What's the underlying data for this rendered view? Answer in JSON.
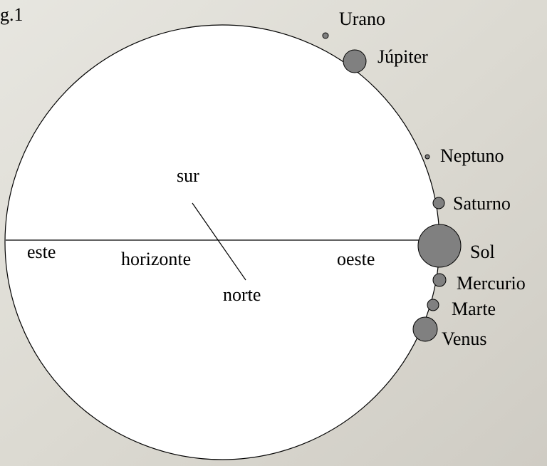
{
  "figure_label": "g.1",
  "directions": {
    "south": "sur",
    "east": "este",
    "horizon": "horizonte",
    "west": "oeste",
    "north": "norte"
  },
  "bodies": [
    "Urano",
    "Júpiter",
    "Neptuno",
    "Saturno",
    "Sol",
    "Mercurio",
    "Marte",
    "Venus"
  ]
}
